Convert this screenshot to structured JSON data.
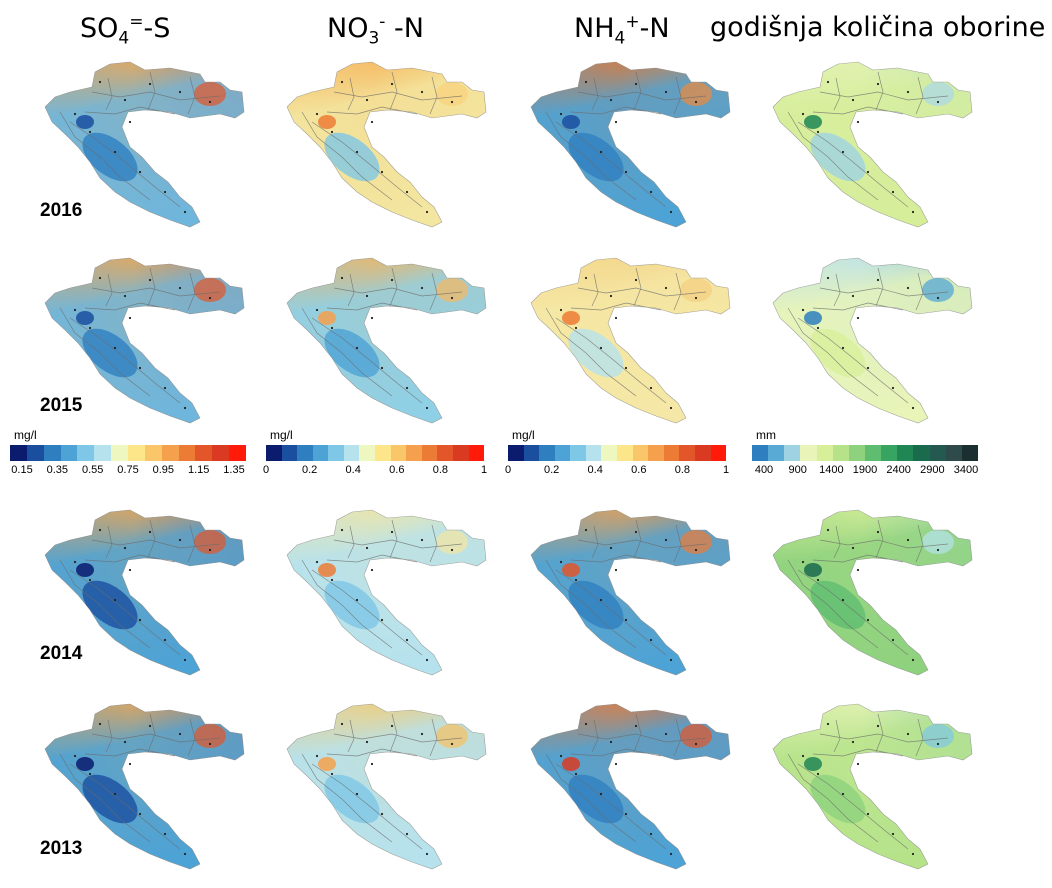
{
  "headers": {
    "so4": {
      "base": "SO",
      "sub": "4",
      "sup": "=",
      "rest": "-S"
    },
    "no3": {
      "base": "NO",
      "sub": "3",
      "sup": "-",
      "rest": " -N"
    },
    "nh4": {
      "base": "NH",
      "sub": "4",
      "sup": "+",
      "rest": "-N"
    },
    "precip": "godišnja količina oborine"
  },
  "years": [
    "2016",
    "2015",
    "2014",
    "2013"
  ],
  "legends": [
    {
      "unit": "mg/l",
      "ticks": [
        "0.15",
        "0.35",
        "0.55",
        "0.75",
        "0.95",
        "1.15",
        "1.35"
      ],
      "colors": [
        "#0b1b6e",
        "#1a4fa0",
        "#2f7fc0",
        "#4da3d6",
        "#7ec7e6",
        "#b6e2ee",
        "#eef7c0",
        "#fde68a",
        "#f9c66a",
        "#f4a04c",
        "#ec7b36",
        "#e2562a",
        "#da3a22",
        "#ff1a0a"
      ]
    },
    {
      "unit": "mg/l",
      "ticks": [
        "0",
        "0.2",
        "0.4",
        "0.6",
        "0.8",
        "1"
      ],
      "colors": [
        "#0b1b6e",
        "#1a4fa0",
        "#2f7fc0",
        "#4da3d6",
        "#7ec7e6",
        "#b6e2ee",
        "#eef7c0",
        "#fde68a",
        "#f9c66a",
        "#f4a04c",
        "#ec7b36",
        "#e2562a",
        "#da3a22",
        "#ff1a0a"
      ]
    },
    {
      "unit": "mg/l",
      "ticks": [
        "0",
        "0.2",
        "0.4",
        "0.6",
        "0.8",
        "1"
      ],
      "colors": [
        "#0b1b6e",
        "#1a4fa0",
        "#2f7fc0",
        "#4da3d6",
        "#7ec7e6",
        "#b6e2ee",
        "#eef7c0",
        "#fde68a",
        "#f9c66a",
        "#f4a04c",
        "#ec7b36",
        "#e2562a",
        "#da3a22",
        "#ff1a0a"
      ]
    },
    {
      "unit": "mm",
      "ticks": [
        "400",
        "900",
        "1400",
        "1900",
        "2400",
        "2900",
        "3400"
      ],
      "colors": [
        "#2f7fc0",
        "#5aaad6",
        "#9fd3e4",
        "#e8f4b8",
        "#d8ef9a",
        "#b6e38a",
        "#8fd27e",
        "#5fbd70",
        "#37a462",
        "#1f8654",
        "#1a6a4e",
        "#23594e",
        "#2f4a4a",
        "#1c2f30"
      ]
    }
  ],
  "maps": [
    [
      {
        "n": "#f6a64c",
        "s": "#6fb6dc",
        "c": "#2f7fc0",
        "e": "#e2562a",
        "spot": "#1a4fa0"
      },
      {
        "n": "#f6b35a",
        "s": "#f3e6a0",
        "c": "#7ec7e6",
        "e": "#f8d27c",
        "spot": "#ec7b36"
      },
      {
        "n": "#e57832",
        "s": "#4da3d6",
        "c": "#2f7fc0",
        "e": "#ee8a3c",
        "spot": "#1a4fa0"
      },
      {
        "n": "#e4f2b6",
        "s": "#d6ee9a",
        "c": "#9fd3e4",
        "e": "#a9d8ea",
        "spot": "#1f8654"
      }
    ],
    [
      {
        "n": "#f6a64c",
        "s": "#6fb6dc",
        "c": "#2f7fc0",
        "e": "#e2562a",
        "spot": "#1a4fa0"
      },
      {
        "n": "#f6b35a",
        "s": "#8fd0e6",
        "c": "#4da3d6",
        "e": "#f8b860",
        "spot": "#f4a04c"
      },
      {
        "n": "#f4d588",
        "s": "#f5e8a6",
        "c": "#b6e2ee",
        "e": "#f3cf80",
        "spot": "#ec7b36"
      },
      {
        "n": "#b8e0ee",
        "s": "#e8f4b8",
        "c": "#d8ef9a",
        "e": "#4da3d6",
        "spot": "#2f7fc0"
      }
    ],
    [
      {
        "n": "#f6a64c",
        "s": "#4da3d6",
        "c": "#1a4fa0",
        "e": "#e2562a",
        "spot": "#0b1b6e"
      },
      {
        "n": "#f5e6a0",
        "s": "#b6e2ee",
        "c": "#7ec7e6",
        "e": "#f3e6a0",
        "spot": "#ec7b36"
      },
      {
        "n": "#f4a04c",
        "s": "#4da3d6",
        "c": "#2f7fc0",
        "e": "#ec7b36",
        "spot": "#e2562a"
      },
      {
        "n": "#d8ef9a",
        "s": "#8fd27e",
        "c": "#5fbd70",
        "e": "#b6e2ee",
        "spot": "#1a6a4e"
      }
    ],
    [
      {
        "n": "#f6a64c",
        "s": "#4da3d6",
        "c": "#1a4fa0",
        "e": "#e2562a",
        "spot": "#0b1b6e"
      },
      {
        "n": "#f7cc70",
        "s": "#b6e2ee",
        "c": "#7ec7e6",
        "e": "#f6c060",
        "spot": "#f4a04c"
      },
      {
        "n": "#ec7b36",
        "s": "#4da3d6",
        "c": "#2f7fc0",
        "e": "#e2562a",
        "spot": "#da3a22"
      },
      {
        "n": "#e8f4b8",
        "s": "#b6e38a",
        "c": "#8fd27e",
        "e": "#7ec7e6",
        "spot": "#1f8654"
      }
    ]
  ]
}
